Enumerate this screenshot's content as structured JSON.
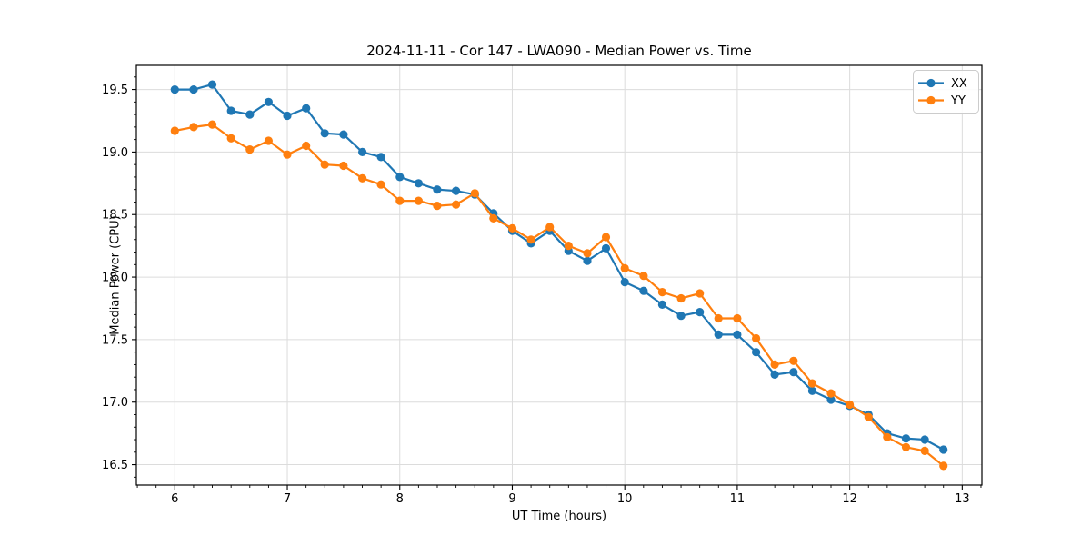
{
  "chart_data": {
    "type": "line",
    "title": "2024-11-11 - Cor 147 - LWA090 - Median Power vs. Time",
    "xlabel": "UT Time (hours)",
    "ylabel": "Median Power (CPU)",
    "x": [
      6.0,
      6.167,
      6.333,
      6.5,
      6.667,
      6.833,
      7.0,
      7.167,
      7.333,
      7.5,
      7.667,
      7.833,
      8.0,
      8.167,
      8.333,
      8.5,
      8.667,
      8.833,
      9.0,
      9.167,
      9.333,
      9.5,
      9.667,
      9.833,
      10.0,
      10.167,
      10.333,
      10.5,
      10.667,
      10.833,
      11.0,
      11.167,
      11.333,
      11.5,
      11.667,
      11.833,
      12.0,
      12.167,
      12.333,
      12.5,
      12.667,
      12.833
    ],
    "series": [
      {
        "name": "XX",
        "color": "#1f77b4",
        "values": [
          19.5,
          19.5,
          19.54,
          19.33,
          19.3,
          19.4,
          19.29,
          19.35,
          19.15,
          19.14,
          19.0,
          18.96,
          18.8,
          18.75,
          18.7,
          18.69,
          18.66,
          18.51,
          18.37,
          18.27,
          18.37,
          18.21,
          18.13,
          18.23,
          17.96,
          17.89,
          17.78,
          17.69,
          17.72,
          17.54,
          17.54,
          17.4,
          17.22,
          17.24,
          17.09,
          17.02,
          16.97,
          16.9,
          16.75,
          16.71,
          16.7,
          16.62
        ]
      },
      {
        "name": "YY",
        "color": "#ff7f0e",
        "values": [
          19.17,
          19.2,
          19.22,
          19.11,
          19.02,
          19.09,
          18.98,
          19.05,
          18.9,
          18.89,
          18.79,
          18.74,
          18.61,
          18.61,
          18.57,
          18.58,
          18.67,
          18.47,
          18.39,
          18.3,
          18.4,
          18.25,
          18.19,
          18.32,
          18.07,
          18.01,
          17.88,
          17.83,
          17.87,
          17.67,
          17.67,
          17.51,
          17.3,
          17.33,
          17.15,
          17.07,
          16.98,
          16.88,
          16.72,
          16.64,
          16.61,
          16.49
        ]
      }
    ],
    "xlim": [
      5.658,
      13.175
    ],
    "ylim": [
      16.337,
      19.693
    ],
    "xticks": [
      6,
      7,
      8,
      9,
      10,
      11,
      12,
      13
    ],
    "x_tick_labels": [
      "6",
      "7",
      "8",
      "9",
      "10",
      "11",
      "12",
      "13"
    ],
    "yticks": [
      16.5,
      17.0,
      17.5,
      18.0,
      18.5,
      19.0,
      19.5
    ],
    "y_tick_labels": [
      "16.5",
      "17.0",
      "17.5",
      "18.0",
      "18.5",
      "19.0",
      "19.5"
    ],
    "x_minor_step": 0.16667,
    "y_minor_step": 0.1,
    "grid": true,
    "grid_color": "#dcdcdc",
    "spine_color": "#000000",
    "tick_color": "#000000",
    "background": "#ffffff",
    "marker": "o",
    "legend": {
      "position": "upper right",
      "entries": [
        "XX",
        "YY"
      ]
    }
  }
}
